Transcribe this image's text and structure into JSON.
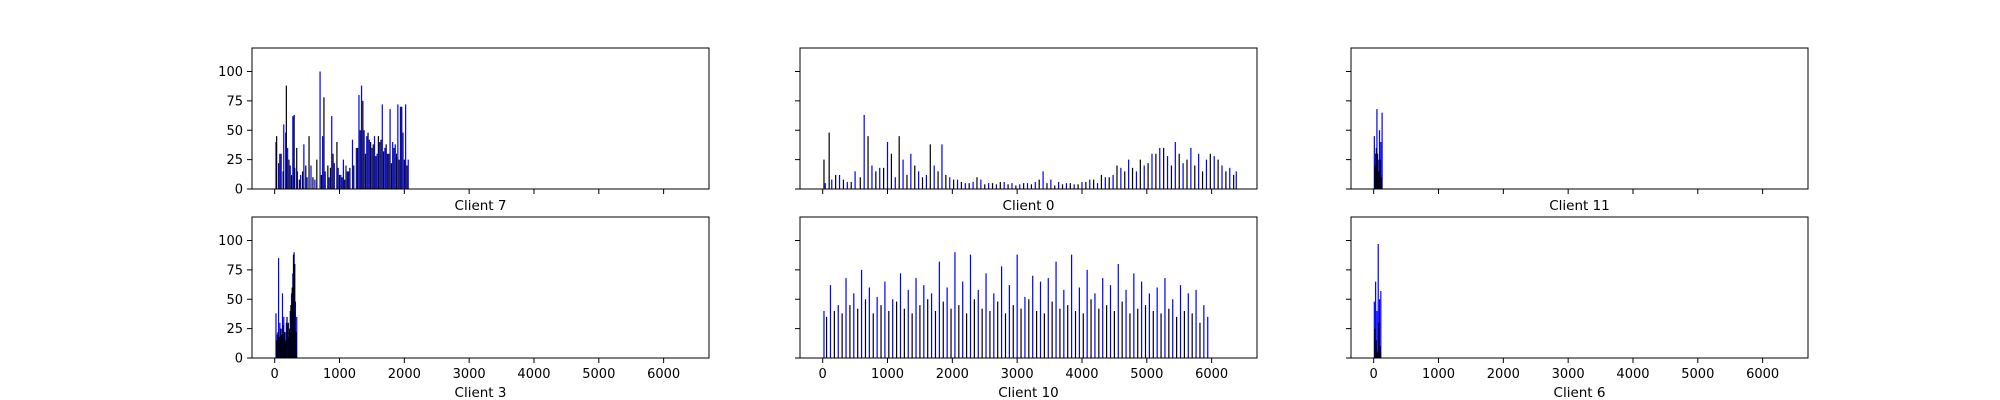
{
  "colors": {
    "series_a": "#0000ff",
    "series_b": "#000000",
    "axes": "#000000",
    "background": "#ffffff"
  },
  "chart_data": [
    {
      "type": "bar",
      "panel": "Client 7",
      "xlim": [
        -350,
        6700
      ],
      "ylim": [
        0,
        120
      ],
      "xticks": [
        0,
        1000,
        2000,
        3000,
        4000,
        5000,
        6000
      ],
      "yticks": [
        0,
        25,
        50,
        75,
        100
      ],
      "xtick_labels_visible": false,
      "ytick_labels_visible": true,
      "series": [
        {
          "color": "#0000ff",
          "x": [
            20,
            60,
            100,
            140,
            170,
            200,
            240,
            280,
            310,
            350,
            400,
            450,
            500,
            560,
            620,
            700,
            740,
            780,
            840,
            880,
            920,
            980,
            1020,
            1060,
            1100,
            1140,
            1200,
            1260,
            1300,
            1340,
            1380,
            1420,
            1460,
            1500,
            1540,
            1580,
            1620,
            1660,
            1700,
            1740,
            1780,
            1820,
            1860,
            1900,
            1940,
            1980,
            2020,
            2060
          ],
          "values": [
            40,
            22,
            30,
            55,
            48,
            35,
            20,
            62,
            18,
            15,
            12,
            38,
            10,
            20,
            8,
            100,
            45,
            15,
            10,
            62,
            22,
            18,
            12,
            25,
            20,
            15,
            42,
            35,
            80,
            88,
            50,
            45,
            42,
            35,
            45,
            30,
            40,
            72,
            35,
            30,
            68,
            40,
            38,
            72,
            70,
            48,
            72,
            25
          ]
        },
        {
          "color": "#000000",
          "x": [
            30,
            80,
            130,
            180,
            220,
            260,
            300,
            340,
            380,
            430,
            480,
            530,
            590,
            650,
            720,
            760,
            820,
            860,
            900,
            960,
            1000,
            1040,
            1080,
            1120,
            1160,
            1220,
            1280,
            1320,
            1360,
            1400,
            1440,
            1480,
            1520,
            1560,
            1600,
            1640,
            1680,
            1720,
            1760,
            1800,
            1840,
            1880,
            1920,
            1960,
            2000,
            2040
          ],
          "values": [
            45,
            30,
            15,
            88,
            25,
            12,
            63,
            35,
            8,
            15,
            20,
            45,
            10,
            25,
            12,
            78,
            20,
            18,
            30,
            40,
            12,
            10,
            8,
            15,
            18,
            20,
            35,
            50,
            75,
            30,
            48,
            40,
            38,
            28,
            45,
            42,
            32,
            38,
            30,
            22,
            35,
            30,
            25,
            70,
            25,
            20
          ]
        }
      ]
    },
    {
      "type": "bar",
      "panel": "Client 0",
      "xlim": [
        -350,
        6700
      ],
      "ylim": [
        0,
        120
      ],
      "xticks": [
        0,
        1000,
        2000,
        3000,
        4000,
        5000,
        6000
      ],
      "yticks": [
        0,
        25,
        50,
        75,
        100
      ],
      "xtick_labels_visible": false,
      "ytick_labels_visible": false,
      "series": [
        {
          "color": "#0000ff",
          "x": [
            40,
            140,
            260,
            380,
            500,
            640,
            760,
            880,
            1000,
            1120,
            1240,
            1360,
            1480,
            1600,
            1720,
            1840,
            1960,
            2080,
            2200,
            2320,
            2440,
            2560,
            2680,
            2800,
            2920,
            3040,
            3160,
            3280,
            3400,
            3520,
            3640,
            3760,
            3880,
            4000,
            4120,
            4240,
            4360,
            4480,
            4600,
            4720,
            4840,
            4960,
            5080,
            5200,
            5320,
            5440,
            5560,
            5680,
            5800,
            5920,
            6040,
            6160,
            6280,
            6380
          ],
          "values": [
            5,
            8,
            12,
            6,
            15,
            63,
            20,
            18,
            40,
            10,
            25,
            30,
            15,
            12,
            20,
            38,
            10,
            8,
            5,
            6,
            8,
            5,
            4,
            6,
            5,
            4,
            5,
            6,
            15,
            8,
            6,
            5,
            4,
            6,
            8,
            5,
            10,
            12,
            18,
            25,
            15,
            20,
            30,
            35,
            28,
            40,
            22,
            35,
            30,
            25,
            28,
            20,
            18,
            15
          ]
        },
        {
          "color": "#000000",
          "x": [
            20,
            100,
            200,
            320,
            440,
            580,
            700,
            820,
            940,
            1060,
            1180,
            1300,
            1420,
            1540,
            1660,
            1780,
            1900,
            2020,
            2140,
            2260,
            2380,
            2500,
            2620,
            2740,
            2860,
            2980,
            3100,
            3220,
            3340,
            3460,
            3580,
            3700,
            3820,
            3940,
            4060,
            4180,
            4300,
            4420,
            4540,
            4660,
            4780,
            4900,
            5020,
            5140,
            5260,
            5380,
            5500,
            5620,
            5740,
            5860,
            5980,
            6100,
            6220,
            6340
          ],
          "values": [
            25,
            48,
            12,
            8,
            6,
            10,
            45,
            15,
            18,
            30,
            45,
            12,
            20,
            10,
            38,
            15,
            12,
            8,
            6,
            5,
            10,
            4,
            5,
            6,
            4,
            3,
            5,
            4,
            8,
            5,
            3,
            4,
            5,
            4,
            6,
            8,
            12,
            10,
            20,
            15,
            18,
            25,
            22,
            30,
            35,
            20,
            30,
            25,
            20,
            15,
            30,
            25,
            15,
            12
          ]
        }
      ]
    },
    {
      "type": "bar",
      "panel": "Client 11",
      "xlim": [
        -350,
        6700
      ],
      "ylim": [
        0,
        120
      ],
      "xticks": [
        0,
        1000,
        2000,
        3000,
        4000,
        5000,
        6000
      ],
      "yticks": [
        0,
        25,
        50,
        75,
        100
      ],
      "xtick_labels_visible": false,
      "ytick_labels_visible": false,
      "series": [
        {
          "color": "#0000ff",
          "x": [
            10,
            30,
            50,
            70,
            90,
            110,
            130
          ],
          "values": [
            45,
            30,
            68,
            25,
            50,
            40,
            65
          ]
        },
        {
          "color": "#000000",
          "x": [
            20,
            40,
            60,
            80,
            100,
            120
          ],
          "values": [
            20,
            35,
            30,
            15,
            25,
            10
          ]
        }
      ]
    },
    {
      "type": "bar",
      "panel": "Client 3",
      "xlim": [
        -350,
        6700
      ],
      "ylim": [
        0,
        120
      ],
      "xticks": [
        0,
        1000,
        2000,
        3000,
        4000,
        5000,
        6000
      ],
      "yticks": [
        0,
        25,
        50,
        75,
        100
      ],
      "xtick_labels_visible": true,
      "ytick_labels_visible": true,
      "series": [
        {
          "color": "#0000ff",
          "x": [
            20,
            40,
            60,
            80,
            100,
            120,
            140,
            160,
            180,
            200,
            220,
            240,
            260,
            280,
            300,
            320,
            340
          ],
          "values": [
            38,
            20,
            85,
            30,
            25,
            55,
            35,
            22,
            30,
            28,
            18,
            40,
            55,
            72,
            90,
            48,
            35
          ]
        },
        {
          "color": "#000000",
          "x": [
            30,
            50,
            70,
            90,
            110,
            130,
            150,
            170,
            190,
            210,
            230,
            250,
            270,
            290,
            310,
            330
          ],
          "values": [
            15,
            22,
            18,
            25,
            20,
            28,
            22,
            15,
            35,
            30,
            25,
            45,
            60,
            88,
            80,
            22
          ]
        }
      ]
    },
    {
      "type": "bar",
      "panel": "Client 10",
      "xlim": [
        -350,
        6700
      ],
      "ylim": [
        0,
        120
      ],
      "xticks": [
        0,
        1000,
        2000,
        3000,
        4000,
        5000,
        6000
      ],
      "yticks": [
        0,
        25,
        50,
        75,
        100
      ],
      "xtick_labels_visible": true,
      "ytick_labels_visible": false,
      "series": [
        {
          "color": "#0000ff",
          "x": [
            20,
            120,
            240,
            360,
            480,
            600,
            720,
            840,
            960,
            1080,
            1200,
            1320,
            1440,
            1560,
            1680,
            1800,
            1920,
            2040,
            2160,
            2280,
            2400,
            2520,
            2640,
            2760,
            2880,
            3000,
            3120,
            3240,
            3360,
            3480,
            3600,
            3720,
            3840,
            3960,
            4080,
            4200,
            4320,
            4440,
            4560,
            4680,
            4800,
            4920,
            5040,
            5160,
            5280,
            5400,
            5520,
            5640,
            5760,
            5880,
            5940
          ],
          "values": [
            40,
            62,
            45,
            68,
            55,
            75,
            60,
            52,
            65,
            50,
            72,
            58,
            68,
            62,
            55,
            82,
            60,
            90,
            65,
            88,
            58,
            72,
            55,
            78,
            62,
            88,
            52,
            70,
            65,
            68,
            82,
            58,
            88,
            60,
            75,
            55,
            68,
            62,
            80,
            58,
            72,
            65,
            55,
            60,
            68,
            50,
            62,
            55,
            58,
            45,
            35
          ]
        },
        {
          "color": "#000000",
          "x": [
            60,
            180,
            300,
            420,
            540,
            660,
            780,
            900,
            1020,
            1140,
            1260,
            1380,
            1500,
            1620,
            1740,
            1860,
            1980,
            2100,
            2220,
            2340,
            2460,
            2580,
            2700,
            2820,
            2940,
            3060,
            3180,
            3300,
            3420,
            3540,
            3660,
            3780,
            3900,
            4020,
            4140,
            4260,
            4380,
            4500,
            4620,
            4740,
            4860,
            4980,
            5100,
            5220,
            5340,
            5460,
            5580,
            5700,
            5820
          ],
          "values": [
            35,
            40,
            38,
            45,
            42,
            50,
            38,
            45,
            40,
            48,
            42,
            38,
            45,
            50,
            40,
            48,
            42,
            45,
            38,
            50,
            42,
            40,
            48,
            38,
            45,
            42,
            50,
            40,
            38,
            48,
            42,
            45,
            40,
            38,
            50,
            42,
            45,
            40,
            48,
            38,
            42,
            45,
            40,
            38,
            42,
            35,
            40,
            38,
            30
          ]
        }
      ]
    },
    {
      "type": "bar",
      "panel": "Client 6",
      "xlim": [
        -350,
        6700
      ],
      "ylim": [
        0,
        120
      ],
      "xticks": [
        0,
        1000,
        2000,
        3000,
        4000,
        5000,
        6000
      ],
      "yticks": [
        0,
        25,
        50,
        75,
        100
      ],
      "xtick_labels_visible": true,
      "ytick_labels_visible": false,
      "series": [
        {
          "color": "#0000ff",
          "x": [
            10,
            30,
            50,
            70,
            90,
            110
          ],
          "values": [
            48,
            65,
            40,
            97,
            50,
            57
          ]
        },
        {
          "color": "#000000",
          "x": [
            20,
            40,
            60,
            80,
            100
          ],
          "values": [
            25,
            15,
            5,
            30,
            10
          ]
        }
      ]
    }
  ]
}
